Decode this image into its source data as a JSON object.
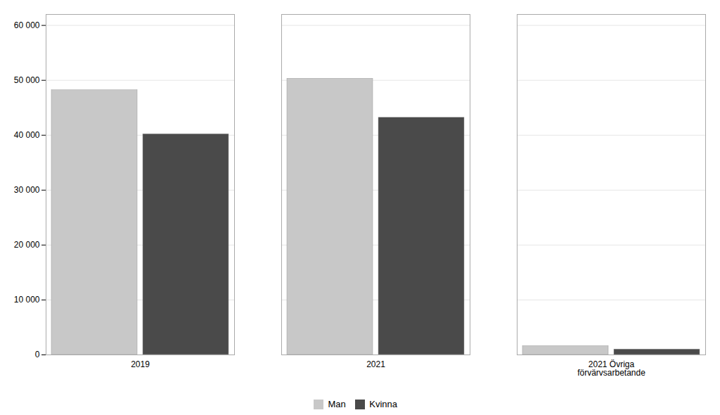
{
  "chart_data": {
    "type": "bar",
    "categories": [
      "2019",
      "2021",
      "2021 Övriga\nförvärvsarbetande"
    ],
    "series": [
      {
        "name": "Man",
        "color": "#c8c8c8",
        "values": [
          48200,
          50300,
          1600
        ]
      },
      {
        "name": "Kvinna",
        "color": "#4a4a4a",
        "values": [
          40200,
          43200,
          1000
        ]
      }
    ],
    "ylim": [
      0,
      62000
    ],
    "yticks": [
      0,
      {
        "value": 10000,
        "label": "10 000"
      },
      {
        "value": 20000,
        "label": "20 000"
      },
      {
        "value": 30000,
        "label": "30 000"
      },
      {
        "value": 40000,
        "label": "40 000"
      },
      {
        "value": 50000,
        "label": "50 000"
      },
      {
        "value": 60000,
        "label": "60 000"
      }
    ],
    "grid": true,
    "legend": "bottom"
  }
}
